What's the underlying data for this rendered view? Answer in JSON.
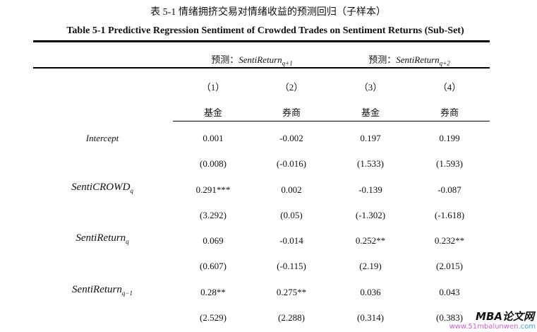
{
  "caption_cn": "表 5-1  情绪拥挤交易对情绪收益的预测回归（子样本）",
  "caption_en": "Table 5-1 Predictive Regression Sentiment of Crowded Trades on Sentiment Returns (Sub-Set)",
  "group_headers": [
    {
      "prefix": "预测：",
      "var": "SentiReturn",
      "sub": "q+1"
    },
    {
      "prefix": "预测：",
      "var": "SentiReturn",
      "sub": "q+2"
    }
  ],
  "col_numbers": [
    "（1）",
    "（2）",
    "（3）",
    "（4）"
  ],
  "col_types": [
    "基金",
    "券商",
    "基金",
    "券商"
  ],
  "rows": [
    {
      "var": "Intercept",
      "sub": "",
      "coef": [
        "0.001",
        "-0.002",
        "0.197",
        "0.199"
      ],
      "t": [
        "(0.008)",
        "(-0.016)",
        "(1.533)",
        "(1.593)"
      ]
    },
    {
      "var": "SentiCROWD",
      "sub": "q",
      "coef": [
        "0.291***",
        "0.002",
        "-0.139",
        "-0.087"
      ],
      "t": [
        "(3.292)",
        "(0.05)",
        "(-1.302)",
        "(-1.618)"
      ]
    },
    {
      "var": "SentiReturn",
      "sub": "q",
      "coef": [
        "0.069",
        "-0.014",
        "0.252**",
        "0.232**"
      ],
      "t": [
        "(0.607)",
        "(-0.115)",
        "(2.19)",
        "(2.015)"
      ]
    },
    {
      "var": "SentiReturn",
      "sub": "q−1",
      "coef": [
        "0.28**",
        "0.275**",
        "0.036",
        "0.043"
      ],
      "t": [
        "(2.529)",
        "(2.288)",
        "(0.314)",
        "(0.383)"
      ]
    }
  ],
  "watermark": {
    "line1": "MBA论文网",
    "line2a": "www.51mbalunwen",
    "line2b": ".com"
  }
}
